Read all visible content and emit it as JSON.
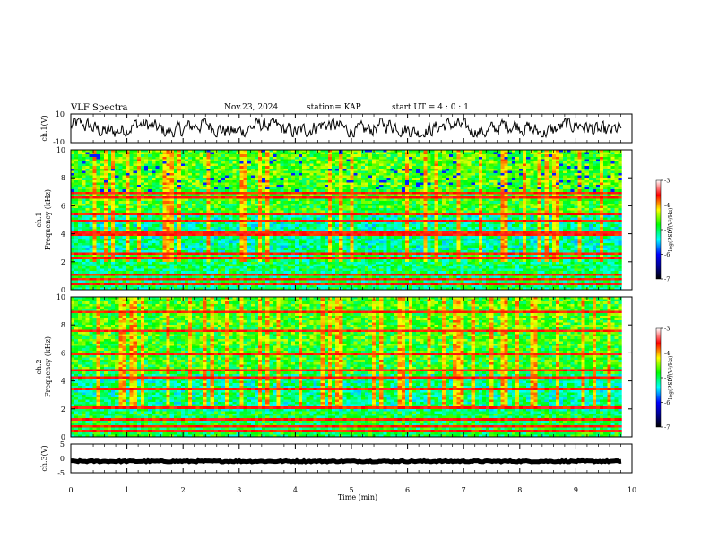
{
  "header": {
    "title": "VLF Spectra",
    "date": "Nov.23, 2024",
    "station": "station= KAP",
    "start": "start  UT =   4 : 0  : 1"
  },
  "chart_data": [
    {
      "type": "line",
      "panel": "ch1-waveform",
      "ylabel": "ch.1(V)",
      "ylim": [
        -10,
        10
      ],
      "y_ticks": [
        "10",
        "-10"
      ],
      "x_range_min": [
        0,
        9.82
      ],
      "trace_style": "noisy waveform roughly between -5 and 6 V"
    },
    {
      "type": "heatmap",
      "panel": "ch1-spectrogram",
      "ylabel_line1": "ch.1",
      "ylabel_line2": "Frequency  (kHz)",
      "ylim": [
        0,
        10
      ],
      "y_ticks": [
        "0",
        "2",
        "4",
        "6",
        "8",
        "10"
      ],
      "x_range_min": [
        0,
        9.82
      ],
      "colorbar": {
        "label": "log(PSD)(V²/Hz)",
        "range": [
          -7,
          -3
        ],
        "ticks": [
          "-3",
          "-4",
          "-5",
          "-6",
          "-7"
        ]
      },
      "persistent_lines_khz": [
        0.3,
        0.6,
        1.1,
        2.2,
        2.5,
        3.9,
        4.1,
        5.0,
        5.4,
        6.6,
        7.0
      ]
    },
    {
      "type": "heatmap",
      "panel": "ch2-spectrogram",
      "ylabel_line1": "ch.2",
      "ylabel_line2": "Frequency  (kHz)",
      "ylim": [
        0,
        10
      ],
      "y_ticks": [
        "0",
        "2",
        "4",
        "6",
        "8",
        "10"
      ],
      "x_range_min": [
        0,
        9.82
      ],
      "colorbar": {
        "label": "log(PSD)(V²/Hz)",
        "range": [
          -7,
          -3
        ],
        "ticks": [
          "-3",
          "-4",
          "-5",
          "-6",
          "-7"
        ]
      },
      "persistent_lines_khz": [
        0.3,
        0.6,
        1.2,
        2.0,
        3.4,
        4.2,
        4.8,
        6.0,
        7.6,
        9.0
      ]
    },
    {
      "type": "line",
      "panel": "ch3-waveform",
      "ylabel": "ch.3(V)",
      "ylim": [
        -5,
        5
      ],
      "y_ticks": [
        "5",
        "0",
        "-5"
      ],
      "x_range_min": [
        0,
        9.82
      ],
      "trace_style": "thick band near -1 V"
    }
  ],
  "x_axis": {
    "label": "Time  (min)",
    "ticks": [
      "0",
      "1",
      "2",
      "3",
      "4",
      "5",
      "6",
      "7",
      "8",
      "9",
      "10"
    ],
    "range": [
      0,
      10
    ]
  },
  "colors": {
    "colormap": [
      "#000000",
      "#00008b",
      "#0000ff",
      "#00ffff",
      "#00ff00",
      "#ffff00",
      "#ff0000",
      "#ffffff"
    ],
    "trace": "#000000"
  }
}
